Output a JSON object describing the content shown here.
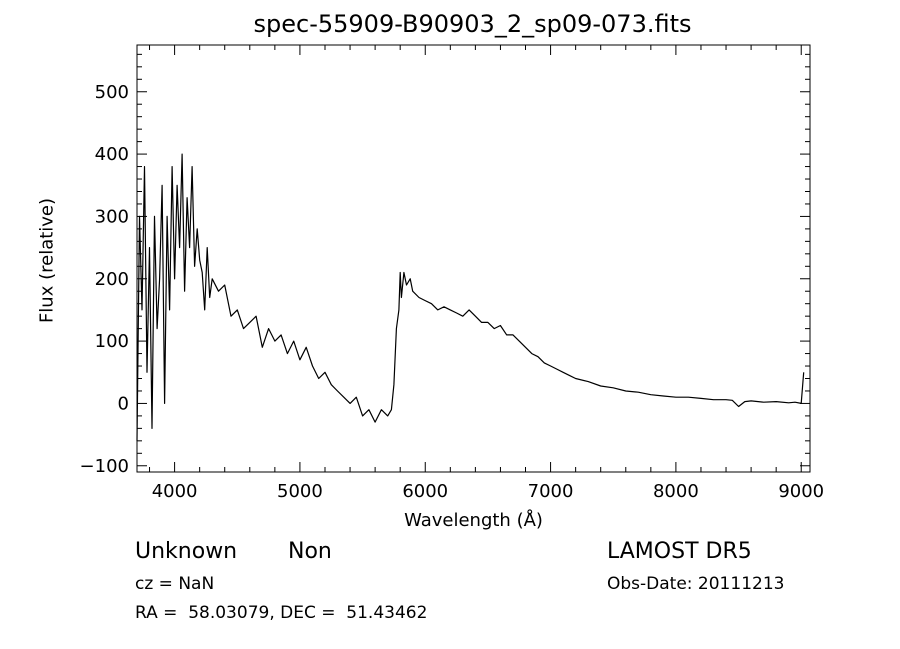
{
  "chart_data": {
    "type": "line",
    "title": "spec-55909-B90903_2_sp09-073.fits",
    "xlabel": "Wavelength (Å)",
    "ylabel": "Flux (relative)",
    "xlim": [
      3700,
      9070
    ],
    "ylim": [
      -110,
      575
    ],
    "xticks": [
      4000,
      5000,
      6000,
      7000,
      8000,
      9000
    ],
    "yticks": [
      -100,
      0,
      100,
      200,
      300,
      400,
      500
    ],
    "grid": false,
    "series": [
      {
        "x": [
          3700,
          3720,
          3740,
          3760,
          3780,
          3800,
          3820,
          3840,
          3860,
          3880,
          3900,
          3920,
          3940,
          3960,
          3980,
          4000,
          4020,
          4040,
          4060,
          4080,
          4100,
          4120,
          4140,
          4160,
          4180,
          4200,
          4220,
          4240,
          4260,
          4280,
          4300,
          4350,
          4400,
          4450,
          4500,
          4550,
          4600,
          4650,
          4700,
          4750,
          4800,
          4850,
          4900,
          4950,
          5000,
          5050,
          5100,
          5150,
          5200,
          5250,
          5300,
          5350,
          5400,
          5450,
          5500,
          5550,
          5600,
          5650,
          5700,
          5730,
          5750,
          5770,
          5790,
          5800,
          5810,
          5830,
          5850,
          5880,
          5900,
          5950,
          6000,
          6050,
          6100,
          6150,
          6200,
          6250,
          6300,
          6350,
          6400,
          6450,
          6500,
          6550,
          6600,
          6650,
          6700,
          6750,
          6800,
          6850,
          6900,
          6950,
          7000,
          7050,
          7100,
          7150,
          7200,
          7300,
          7400,
          7500,
          7600,
          7700,
          7800,
          7900,
          8000,
          8100,
          8200,
          8300,
          8400,
          8450,
          8500,
          8550,
          8600,
          8700,
          8800,
          8900,
          8950,
          9000,
          9020
        ],
        "values": [
          -60,
          300,
          150,
          380,
          50,
          250,
          -40,
          300,
          120,
          200,
          350,
          0,
          300,
          150,
          380,
          200,
          350,
          250,
          400,
          180,
          330,
          250,
          380,
          220,
          280,
          230,
          210,
          150,
          250,
          170,
          200,
          180,
          190,
          140,
          150,
          120,
          130,
          140,
          90,
          120,
          100,
          110,
          80,
          100,
          70,
          90,
          60,
          40,
          50,
          30,
          20,
          10,
          0,
          10,
          -20,
          -10,
          -30,
          -10,
          -20,
          -10,
          30,
          120,
          150,
          210,
          170,
          210,
          190,
          200,
          180,
          170,
          165,
          160,
          150,
          155,
          150,
          145,
          140,
          150,
          140,
          130,
          130,
          120,
          125,
          110,
          110,
          100,
          90,
          80,
          75,
          65,
          60,
          55,
          50,
          45,
          40,
          35,
          28,
          25,
          20,
          18,
          14,
          12,
          10,
          10,
          8,
          6,
          6,
          5,
          -5,
          3,
          4,
          2,
          3,
          1,
          2,
          0,
          50
        ]
      }
    ]
  },
  "annotations": {
    "class": "Unknown",
    "subclass": "Non",
    "redshift": "cz = NaN",
    "coords": "RA =  58.03079, DEC =  51.43462",
    "survey": "LAMOST DR5",
    "obs_date": "Obs-Date: 20111213"
  }
}
